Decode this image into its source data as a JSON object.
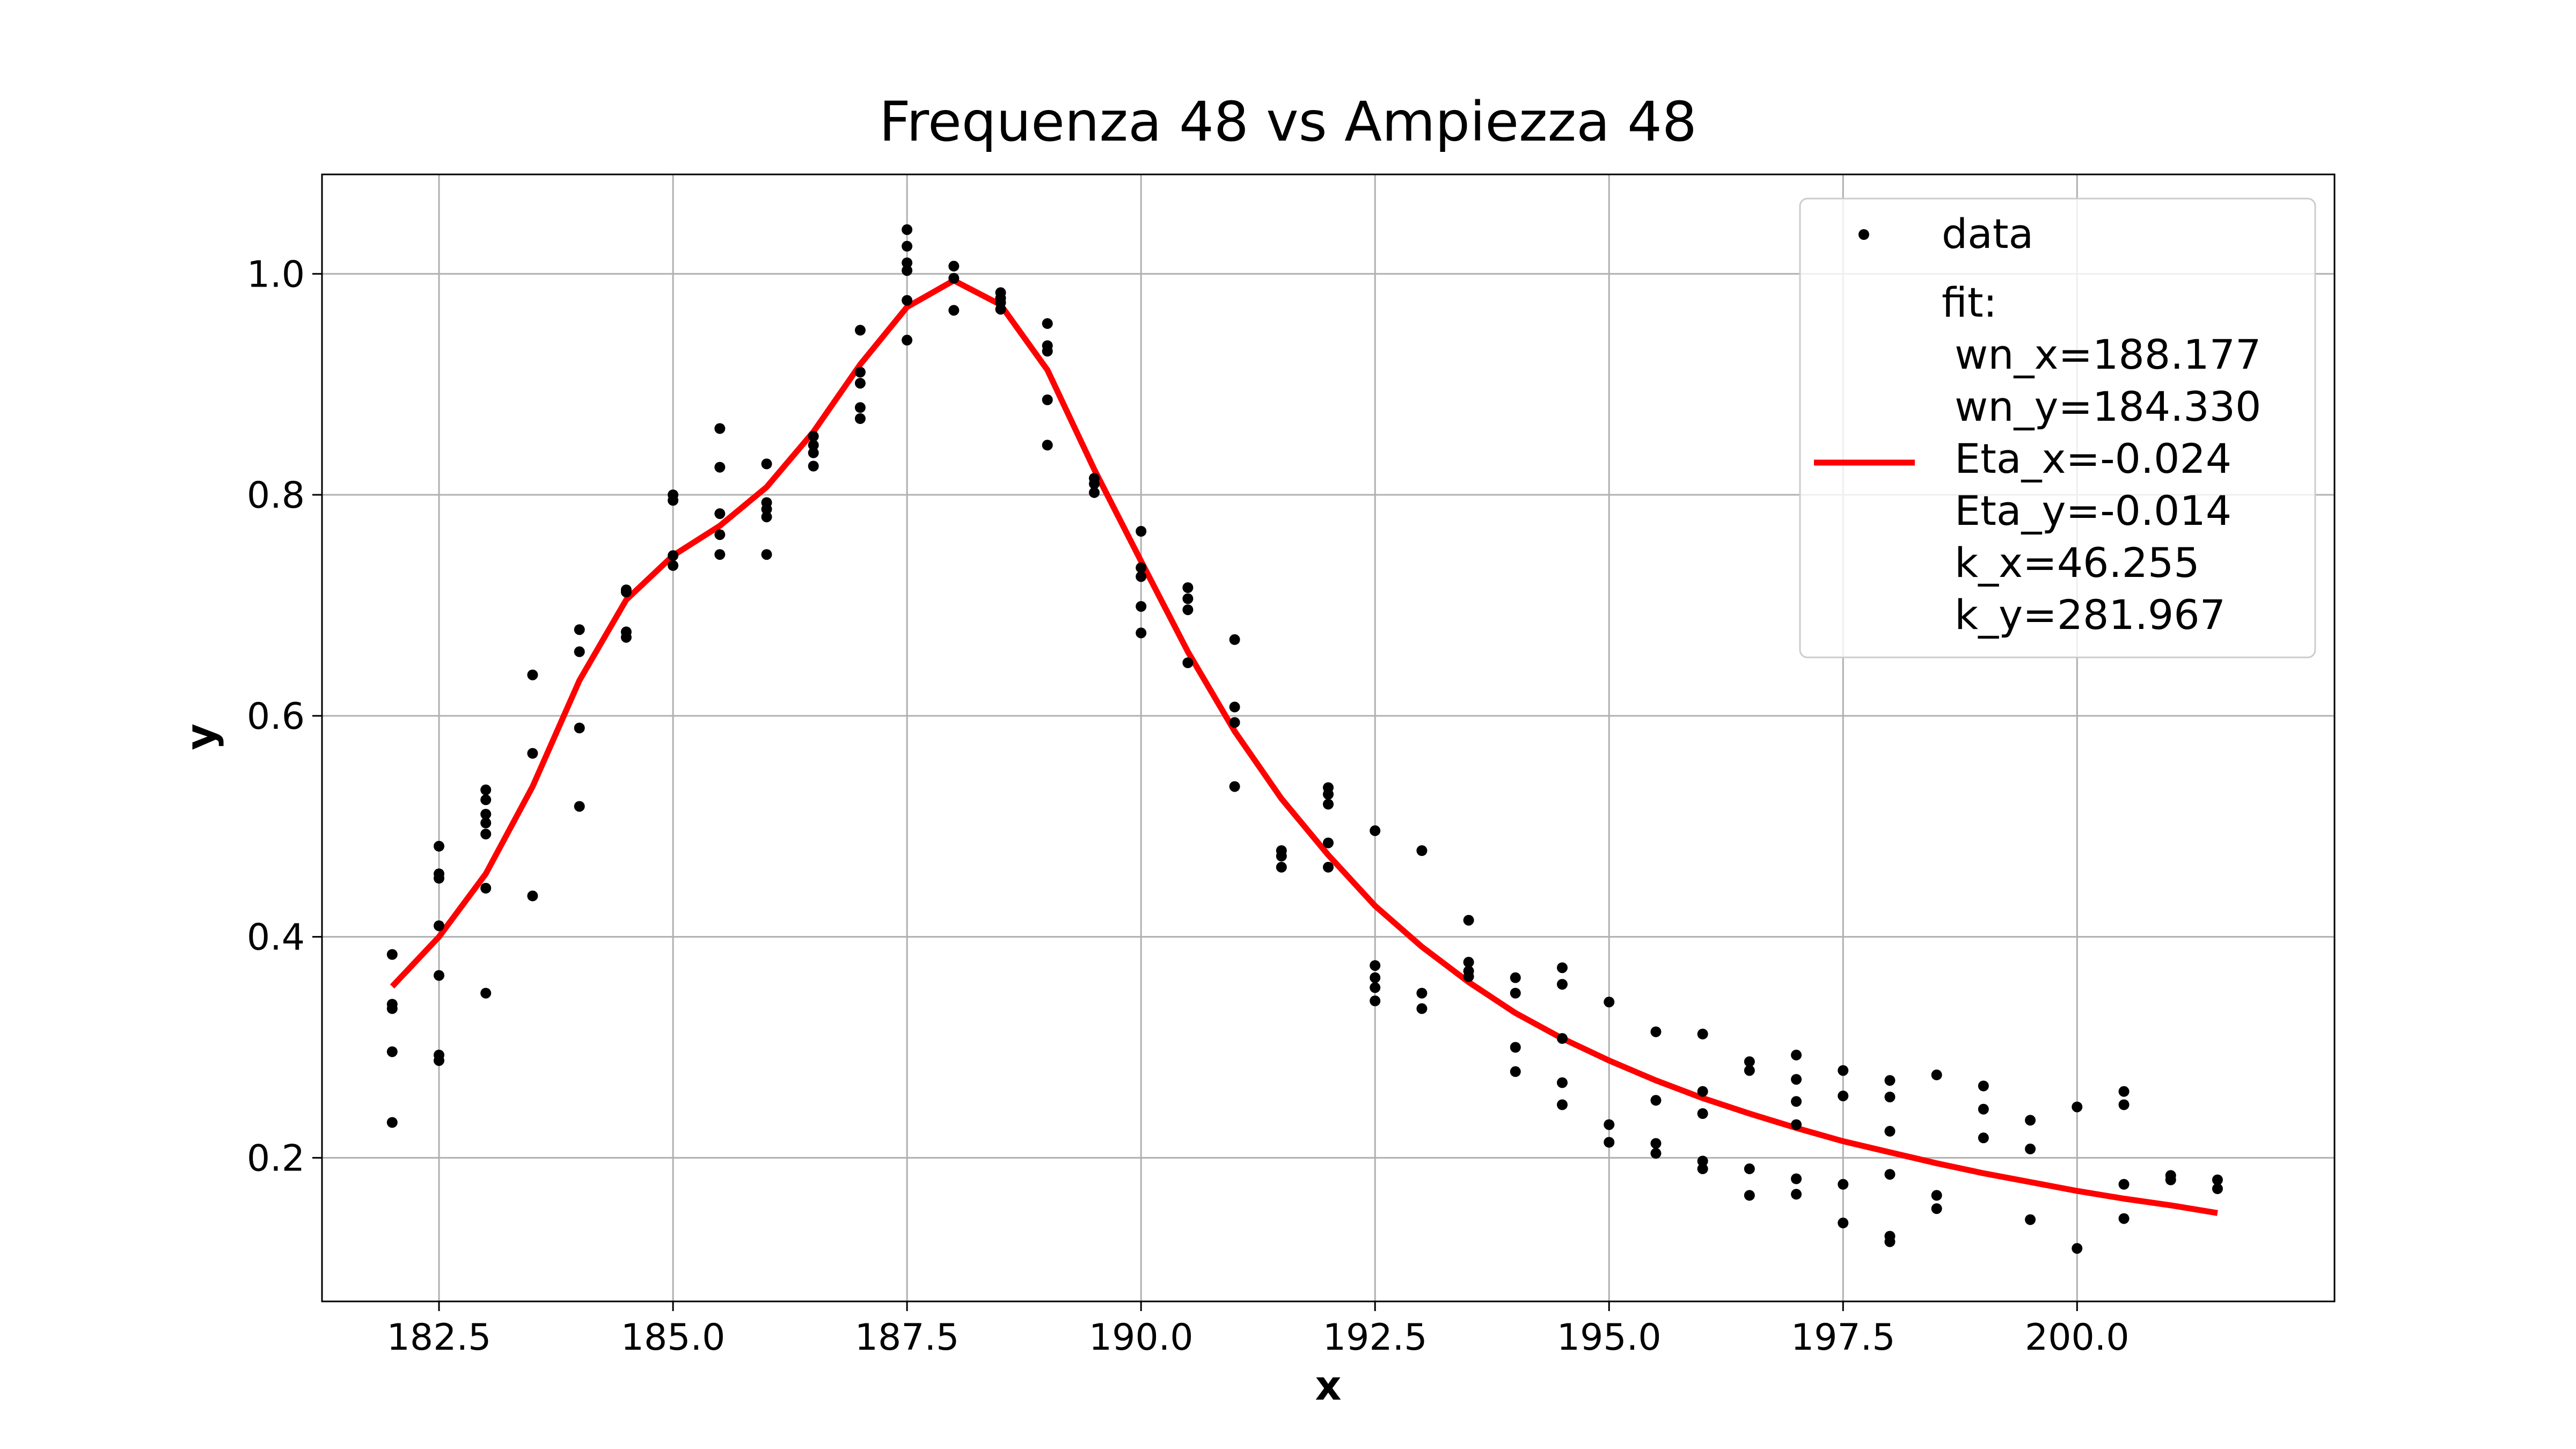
{
  "chart_data": {
    "type": "scatter",
    "title": "Frequenza 48 vs Ampiezza 48",
    "xlabel": "x",
    "ylabel": "y",
    "xlim": [
      181.25,
      202.75
    ],
    "ylim": [
      0.07,
      1.09
    ],
    "xticks": [
      182.5,
      185.0,
      187.5,
      190.0,
      192.5,
      195.0,
      197.5,
      200.0
    ],
    "xtick_labels": [
      "182.5",
      "185.0",
      "187.5",
      "190.0",
      "192.5",
      "195.0",
      "197.5",
      "200.0"
    ],
    "yticks": [
      0.2,
      0.4,
      0.6,
      0.8,
      1.0
    ],
    "ytick_labels": [
      "0.2",
      "0.4",
      "0.6",
      "0.8",
      "1.0"
    ],
    "grid": true,
    "legend_position": "top-right",
    "series": [
      {
        "name": "data",
        "kind": "points",
        "color": "#000000",
        "points": [
          [
            182.0,
            0.384
          ],
          [
            182.0,
            0.339
          ],
          [
            182.0,
            0.335
          ],
          [
            182.0,
            0.296
          ],
          [
            182.0,
            0.232
          ],
          [
            182.5,
            0.482
          ],
          [
            182.5,
            0.457
          ],
          [
            182.5,
            0.453
          ],
          [
            182.5,
            0.41
          ],
          [
            182.5,
            0.365
          ],
          [
            182.5,
            0.293
          ],
          [
            182.5,
            0.288
          ],
          [
            183.0,
            0.533
          ],
          [
            183.0,
            0.524
          ],
          [
            183.0,
            0.511
          ],
          [
            183.0,
            0.503
          ],
          [
            183.0,
            0.493
          ],
          [
            183.0,
            0.444
          ],
          [
            183.0,
            0.349
          ],
          [
            183.5,
            0.637
          ],
          [
            183.5,
            0.566
          ],
          [
            183.5,
            0.437
          ],
          [
            184.0,
            0.678
          ],
          [
            184.0,
            0.658
          ],
          [
            184.0,
            0.589
          ],
          [
            184.0,
            0.518
          ],
          [
            184.5,
            0.714
          ],
          [
            184.5,
            0.712
          ],
          [
            184.5,
            0.676
          ],
          [
            184.5,
            0.671
          ],
          [
            185.0,
            0.8
          ],
          [
            185.0,
            0.795
          ],
          [
            185.0,
            0.745
          ],
          [
            185.0,
            0.736
          ],
          [
            185.5,
            0.86
          ],
          [
            185.5,
            0.825
          ],
          [
            185.5,
            0.783
          ],
          [
            185.5,
            0.764
          ],
          [
            185.5,
            0.746
          ],
          [
            186.0,
            0.828
          ],
          [
            186.0,
            0.793
          ],
          [
            186.0,
            0.787
          ],
          [
            186.0,
            0.78
          ],
          [
            186.0,
            0.746
          ],
          [
            186.5,
            0.853
          ],
          [
            186.5,
            0.845
          ],
          [
            186.5,
            0.838
          ],
          [
            186.5,
            0.826
          ],
          [
            187.0,
            0.949
          ],
          [
            187.0,
            0.911
          ],
          [
            187.0,
            0.901
          ],
          [
            187.0,
            0.879
          ],
          [
            187.0,
            0.869
          ],
          [
            187.5,
            1.04
          ],
          [
            187.5,
            1.025
          ],
          [
            187.5,
            1.01
          ],
          [
            187.5,
            1.003
          ],
          [
            187.5,
            0.976
          ],
          [
            187.5,
            0.94
          ],
          [
            188.0,
            1.007
          ],
          [
            188.0,
            0.996
          ],
          [
            188.0,
            0.967
          ],
          [
            188.5,
            0.983
          ],
          [
            188.5,
            0.978
          ],
          [
            188.5,
            0.974
          ],
          [
            188.5,
            0.968
          ],
          [
            189.0,
            0.955
          ],
          [
            189.0,
            0.935
          ],
          [
            189.0,
            0.93
          ],
          [
            189.0,
            0.886
          ],
          [
            189.0,
            0.845
          ],
          [
            189.5,
            0.815
          ],
          [
            189.5,
            0.81
          ],
          [
            189.5,
            0.802
          ],
          [
            190.0,
            0.767
          ],
          [
            190.0,
            0.734
          ],
          [
            190.0,
            0.726
          ],
          [
            190.0,
            0.699
          ],
          [
            190.0,
            0.675
          ],
          [
            190.5,
            0.716
          ],
          [
            190.5,
            0.706
          ],
          [
            190.5,
            0.696
          ],
          [
            190.5,
            0.648
          ],
          [
            191.0,
            0.669
          ],
          [
            191.0,
            0.608
          ],
          [
            191.0,
            0.594
          ],
          [
            191.0,
            0.536
          ],
          [
            191.5,
            0.478
          ],
          [
            191.5,
            0.473
          ],
          [
            191.5,
            0.463
          ],
          [
            192.0,
            0.535
          ],
          [
            192.0,
            0.529
          ],
          [
            192.0,
            0.52
          ],
          [
            192.0,
            0.485
          ],
          [
            192.0,
            0.463
          ],
          [
            192.5,
            0.496
          ],
          [
            192.5,
            0.374
          ],
          [
            192.5,
            0.363
          ],
          [
            192.5,
            0.354
          ],
          [
            192.5,
            0.342
          ],
          [
            193.0,
            0.478
          ],
          [
            193.0,
            0.349
          ],
          [
            193.0,
            0.335
          ],
          [
            193.5,
            0.415
          ],
          [
            193.5,
            0.377
          ],
          [
            193.5,
            0.369
          ],
          [
            193.5,
            0.364
          ],
          [
            194.0,
            0.363
          ],
          [
            194.0,
            0.349
          ],
          [
            194.0,
            0.3
          ],
          [
            194.0,
            0.278
          ],
          [
            194.5,
            0.372
          ],
          [
            194.5,
            0.357
          ],
          [
            194.5,
            0.308
          ],
          [
            194.5,
            0.268
          ],
          [
            194.5,
            0.248
          ],
          [
            195.0,
            0.341
          ],
          [
            195.0,
            0.23
          ],
          [
            195.0,
            0.214
          ],
          [
            195.5,
            0.314
          ],
          [
            195.5,
            0.252
          ],
          [
            195.5,
            0.213
          ],
          [
            195.5,
            0.204
          ],
          [
            196.0,
            0.312
          ],
          [
            196.0,
            0.26
          ],
          [
            196.0,
            0.24
          ],
          [
            196.0,
            0.197
          ],
          [
            196.0,
            0.19
          ],
          [
            196.5,
            0.287
          ],
          [
            196.5,
            0.279
          ],
          [
            196.5,
            0.19
          ],
          [
            196.5,
            0.166
          ],
          [
            197.0,
            0.293
          ],
          [
            197.0,
            0.271
          ],
          [
            197.0,
            0.251
          ],
          [
            197.0,
            0.23
          ],
          [
            197.0,
            0.181
          ],
          [
            197.0,
            0.167
          ],
          [
            197.5,
            0.279
          ],
          [
            197.5,
            0.256
          ],
          [
            197.5,
            0.176
          ],
          [
            197.5,
            0.141
          ],
          [
            198.0,
            0.27
          ],
          [
            198.0,
            0.255
          ],
          [
            198.0,
            0.224
          ],
          [
            198.0,
            0.185
          ],
          [
            198.0,
            0.129
          ],
          [
            198.0,
            0.124
          ],
          [
            198.5,
            0.275
          ],
          [
            198.5,
            0.166
          ],
          [
            198.5,
            0.154
          ],
          [
            199.0,
            0.265
          ],
          [
            199.0,
            0.244
          ],
          [
            199.0,
            0.218
          ],
          [
            199.5,
            0.234
          ],
          [
            199.5,
            0.208
          ],
          [
            199.5,
            0.144
          ],
          [
            200.0,
            0.246
          ],
          [
            200.0,
            0.118
          ],
          [
            200.5,
            0.26
          ],
          [
            200.5,
            0.248
          ],
          [
            200.5,
            0.176
          ],
          [
            200.5,
            0.145
          ],
          [
            201.0,
            0.184
          ],
          [
            201.0,
            0.18
          ],
          [
            201.5,
            0.18
          ],
          [
            201.5,
            0.172
          ]
        ]
      },
      {
        "name": "fit:\n wn_x=188.177\n wn_y=184.330\n Eta_x=-0.024\n Eta_y=-0.014\n k_x=46.255\n k_y=281.967",
        "kind": "line",
        "color": "#ff0000",
        "points": [
          [
            182.0,
            0.355
          ],
          [
            182.5,
            0.4
          ],
          [
            183.0,
            0.457
          ],
          [
            183.5,
            0.536
          ],
          [
            184.0,
            0.632
          ],
          [
            184.5,
            0.705
          ],
          [
            185.0,
            0.745
          ],
          [
            185.5,
            0.772
          ],
          [
            186.0,
            0.807
          ],
          [
            186.5,
            0.857
          ],
          [
            187.0,
            0.918
          ],
          [
            187.5,
            0.97
          ],
          [
            188.0,
            0.994
          ],
          [
            188.5,
            0.972
          ],
          [
            189.0,
            0.913
          ],
          [
            189.5,
            0.823
          ],
          [
            190.0,
            0.74
          ],
          [
            190.5,
            0.658
          ],
          [
            191.0,
            0.586
          ],
          [
            191.5,
            0.525
          ],
          [
            192.0,
            0.474
          ],
          [
            192.5,
            0.428
          ],
          [
            193.0,
            0.391
          ],
          [
            193.5,
            0.359
          ],
          [
            194.0,
            0.331
          ],
          [
            194.5,
            0.308
          ],
          [
            195.0,
            0.288
          ],
          [
            195.5,
            0.27
          ],
          [
            196.0,
            0.254
          ],
          [
            196.5,
            0.24
          ],
          [
            197.0,
            0.227
          ],
          [
            197.5,
            0.215
          ],
          [
            198.0,
            0.205
          ],
          [
            198.5,
            0.195
          ],
          [
            199.0,
            0.186
          ],
          [
            199.5,
            0.178
          ],
          [
            200.0,
            0.17
          ],
          [
            200.5,
            0.163
          ],
          [
            201.0,
            0.157
          ],
          [
            201.5,
            0.15
          ]
        ]
      }
    ]
  }
}
